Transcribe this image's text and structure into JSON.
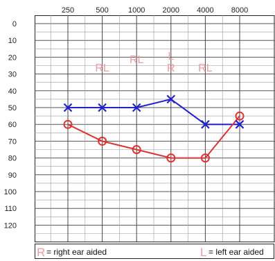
{
  "chart_data": {
    "type": "line",
    "x": [
      250,
      500,
      1000,
      2000,
      4000,
      8000
    ],
    "x_tick_labels": [
      "250",
      "500",
      "1000",
      "2000",
      "4000",
      "8000"
    ],
    "y_tick_labels": [
      "0",
      "10",
      "20",
      "30",
      "40",
      "50",
      "60",
      "70",
      "80",
      "90",
      "100",
      "110",
      "120"
    ],
    "ylim": [
      -5,
      130
    ],
    "y_inverted": true,
    "x_scale": "log",
    "grid": true,
    "series": [
      {
        "marker": "X",
        "color": "#2222cc",
        "values": [
          50,
          50,
          50,
          45,
          60,
          60
        ]
      },
      {
        "marker": "O",
        "color": "#dd3333",
        "values": [
          60,
          70,
          75,
          80,
          80,
          55
        ]
      }
    ],
    "aided_labels": [
      {
        "x": 500,
        "y": 26,
        "text": "RL"
      },
      {
        "x": 1000,
        "y": 21,
        "text": "RL"
      },
      {
        "x": 2000,
        "y": 26,
        "text": "R"
      },
      {
        "x": 2000,
        "y": 19,
        "text": "L"
      },
      {
        "x": 4000,
        "y": 26,
        "text": "RL"
      }
    ],
    "aided_color": "#ee9aa3",
    "legend": [
      {
        "symbol": "R",
        "text": "= right ear aided"
      },
      {
        "symbol": "L",
        "text": "= left ear aided"
      }
    ]
  }
}
